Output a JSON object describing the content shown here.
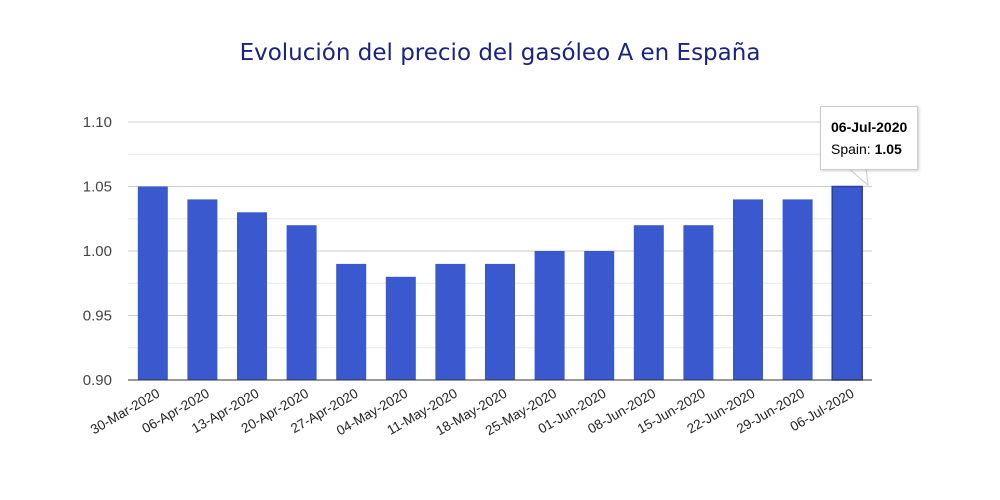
{
  "chart_data": {
    "type": "bar",
    "title": "Evolución del precio del gasóleo A en España",
    "categories": [
      "30-Mar-2020",
      "06-Apr-2020",
      "13-Apr-2020",
      "20-Apr-2020",
      "27-Apr-2020",
      "04-May-2020",
      "11-May-2020",
      "18-May-2020",
      "25-May-2020",
      "01-Jun-2020",
      "08-Jun-2020",
      "15-Jun-2020",
      "22-Jun-2020",
      "29-Jun-2020",
      "06-Jul-2020"
    ],
    "series": [
      {
        "name": "Spain",
        "values": [
          1.05,
          1.04,
          1.03,
          1.02,
          0.99,
          0.98,
          0.99,
          0.99,
          1.0,
          1.0,
          1.02,
          1.02,
          1.04,
          1.04,
          1.05
        ]
      }
    ],
    "ylim": [
      0.9,
      1.1
    ],
    "yticks": [
      "0.90",
      "0.95",
      "1.00",
      "1.05",
      "1.10"
    ],
    "grid": true,
    "bar_color": "#3a59cf",
    "tooltip": {
      "date": "06-Jul-2020",
      "label": "Spain:",
      "value": "1.05"
    }
  }
}
